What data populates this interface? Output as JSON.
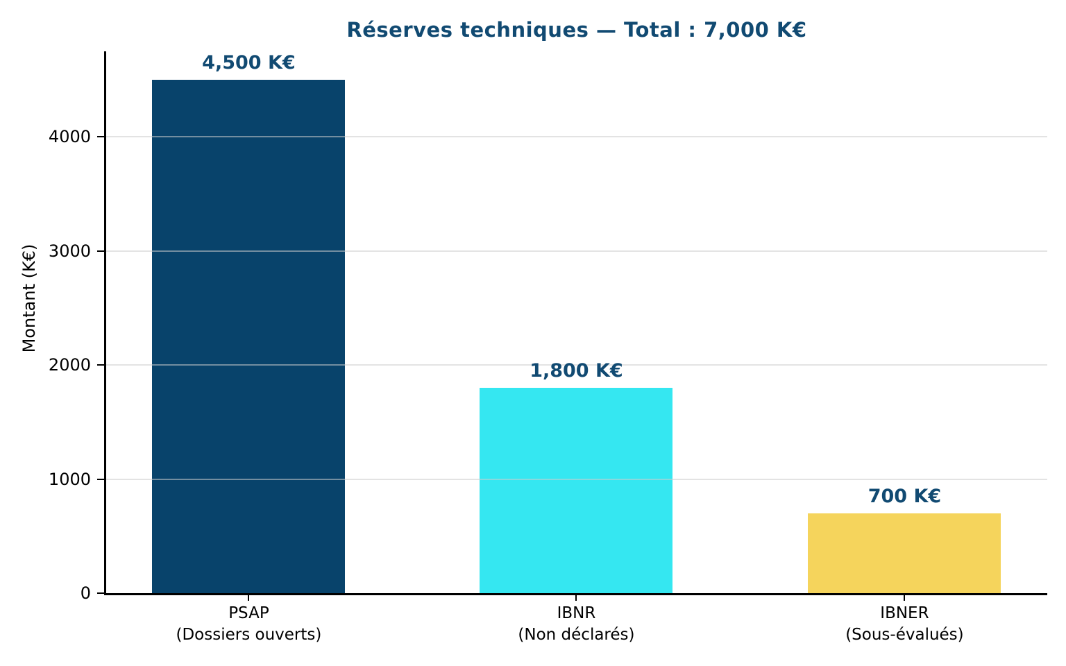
{
  "chart_data": {
    "type": "bar",
    "title": "Réserves techniques — Total : 7,000 K€",
    "ylabel": "Montant (K€)",
    "xlabel": "",
    "categories": [
      "PSAP (Dossiers ouverts)",
      "IBNR (Non déclarés)",
      "IBNER (Sous-évalués)"
    ],
    "category_lines": [
      [
        "PSAP",
        "(Dossiers ouverts)"
      ],
      [
        "IBNR",
        "(Non déclarés)"
      ],
      [
        "IBNER",
        "(Sous-évalués)"
      ]
    ],
    "values": [
      4500,
      1800,
      700
    ],
    "value_labels": [
      "4,500 K€",
      "1,800 K€",
      "700 K€"
    ],
    "bar_colors": [
      "#08436b",
      "#35e7f1",
      "#f5d45c"
    ],
    "text_color": "#114a72",
    "grid_color_rgba": "rgba(204,204,204,0.55)",
    "axis_color": "#000000",
    "ylim": [
      0,
      4750
    ],
    "yticks": [
      0,
      1000,
      2000,
      3000,
      4000
    ],
    "grid": "horizontal-only",
    "legend": "none"
  }
}
